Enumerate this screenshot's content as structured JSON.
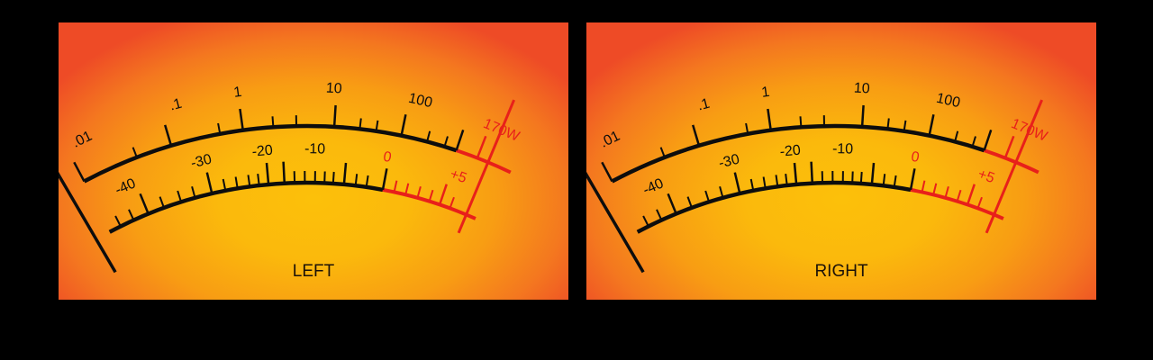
{
  "colors": {
    "scale_black": "#0d0d0d",
    "scale_red": "#e8201a"
  },
  "meters": [
    {
      "channel_label": "LEFT"
    },
    {
      "channel_label": "RIGHT"
    }
  ],
  "upper_scale": {
    "labels": [
      ".01",
      ".1",
      "1",
      "10",
      "100"
    ],
    "max_label": "170W"
  },
  "lower_scale": {
    "labels": [
      "-40",
      "-30",
      "-20",
      "-10"
    ],
    "red_labels": [
      "0",
      "+5"
    ]
  }
}
